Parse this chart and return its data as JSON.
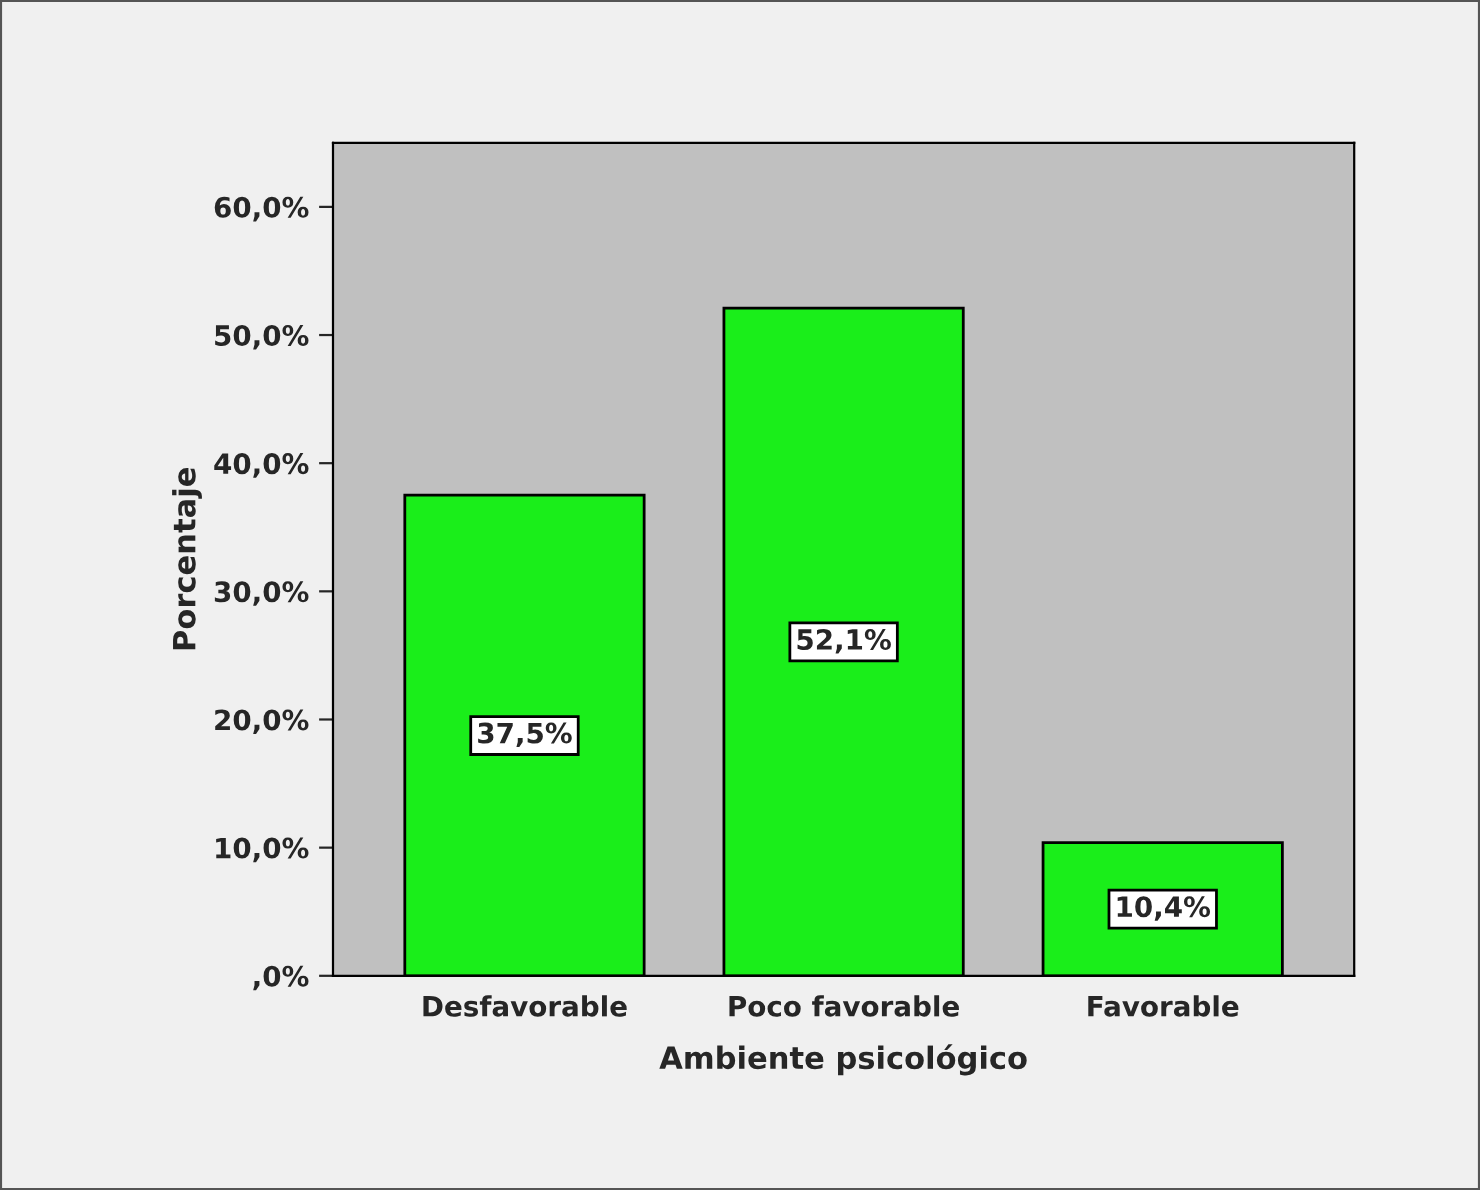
{
  "chart_data": {
    "type": "bar",
    "xlabel": "Ambiente psicológico",
    "ylabel": "Porcentaje",
    "categories": [
      "Desfavorable",
      "Poco favorable",
      "Favorable"
    ],
    "values": [
      37.5,
      52.1,
      10.4
    ],
    "color": "#1aee1a",
    "value_labels": [
      "37,5%",
      "52,1%",
      "10,4%"
    ],
    "ylim": [
      0,
      65
    ],
    "yticks": [
      {
        "value": 0,
        "label": ",0%"
      },
      {
        "value": 10,
        "label": "10,0%"
      },
      {
        "value": 20,
        "label": "20,0%"
      },
      {
        "value": 30,
        "label": "30,0%"
      },
      {
        "value": 40,
        "label": "40,0%"
      },
      {
        "value": 50,
        "label": "50,0%"
      },
      {
        "value": 60,
        "label": "60,0%"
      }
    ],
    "grid": false
  }
}
